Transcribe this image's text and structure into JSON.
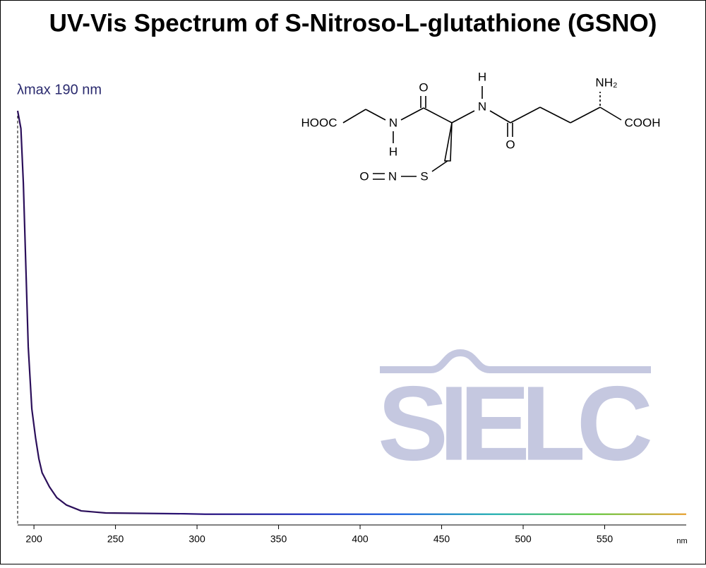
{
  "chart_data": {
    "type": "line",
    "title": "UV-Vis Spectrum of S-Nitroso-L-glutathione (GSNO)",
    "annotation": "λmax  190 nm",
    "x_unit": "nm",
    "x": [
      190,
      192,
      193.5,
      196.5,
      198.7,
      201,
      203,
      205,
      209.5,
      214,
      220,
      229,
      244,
      292,
      305,
      600
    ],
    "series": [
      {
        "values": [
          1.0,
          0.957,
          0.825,
          0.43,
          0.28,
          0.21,
          0.16,
          0.126,
          0.092,
          0.066,
          0.048,
          0.034,
          0.029,
          0.027,
          0.026,
          0.026
        ],
        "colors": [
          "#2b0f5a",
          "#2b0f5a",
          "#2b1580",
          "#2030c0",
          "#1a60e0",
          "#20b0b0",
          "#60c840",
          "#e8a030"
        ]
      }
    ],
    "xlim": [
      190,
      600
    ],
    "xticks": [
      200,
      250,
      300,
      350,
      400,
      450,
      500,
      550
    ],
    "ylim": [
      0,
      1
    ],
    "lambda_max": 190
  },
  "structure": {
    "labels": [
      "HOOC",
      "N",
      "H",
      "O",
      "N",
      "H",
      "O",
      "NH₂",
      "COOH",
      "O",
      "N",
      "S"
    ]
  },
  "watermark": "SIELC"
}
